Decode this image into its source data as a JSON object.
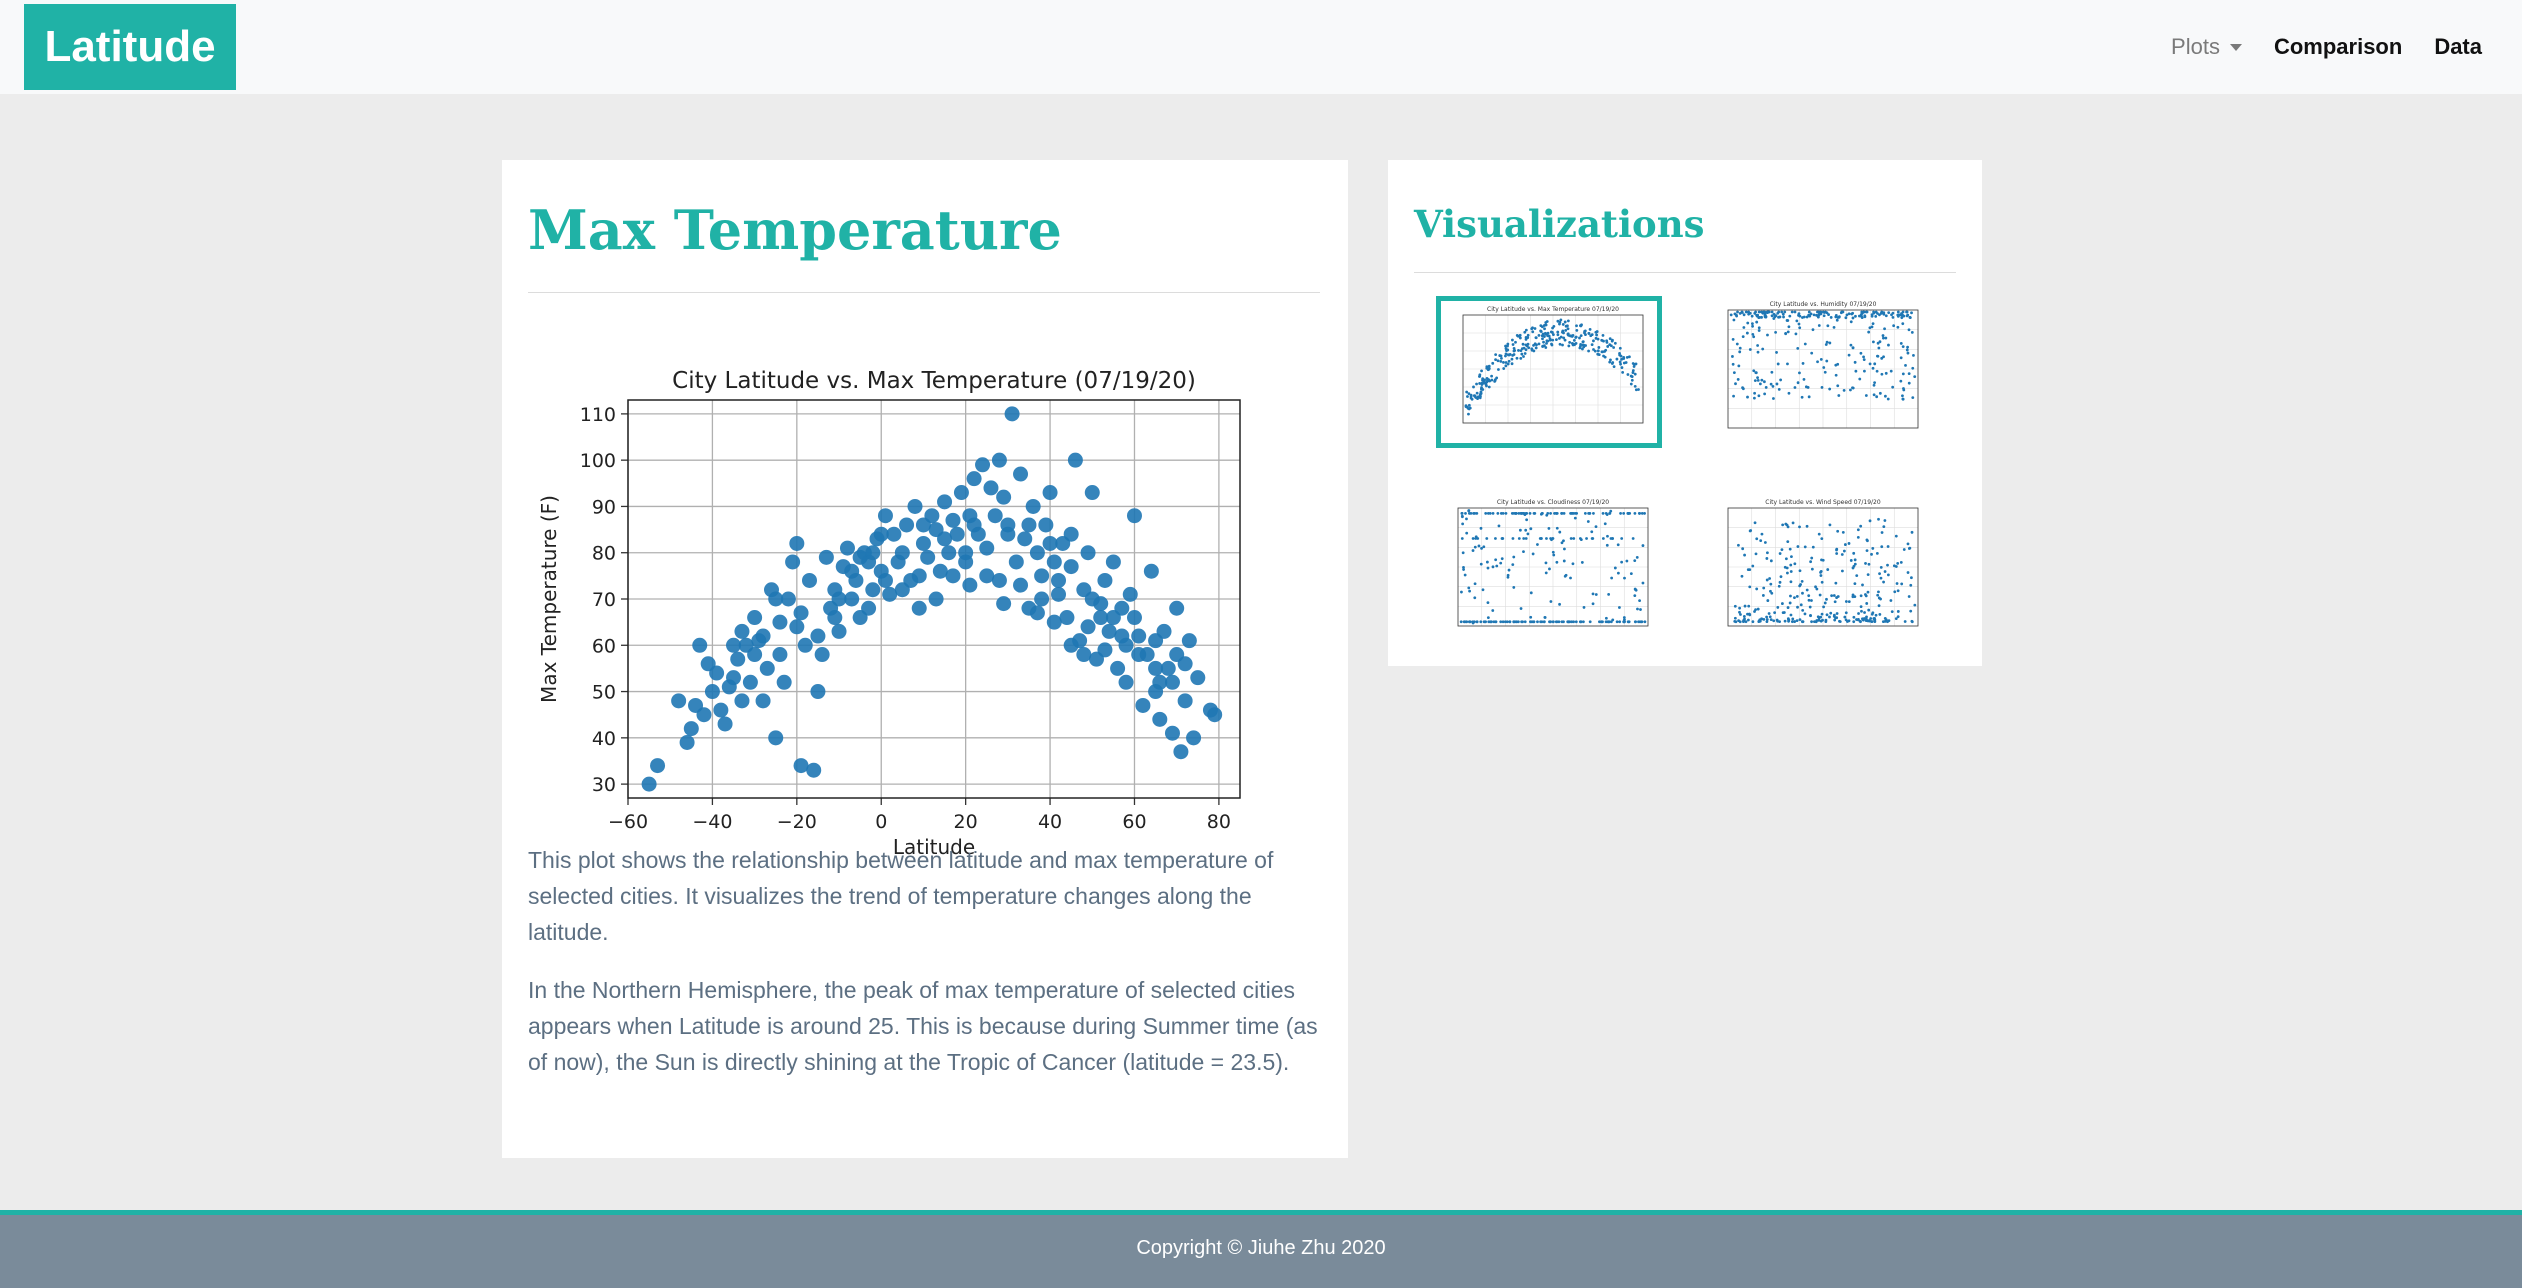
{
  "navbar": {
    "brand": "Latitude",
    "plots_label": "Plots",
    "comparison_label": "Comparison",
    "data_label": "Data"
  },
  "main": {
    "title": "Max Temperature",
    "paragraph1": "This plot shows the relationship between latitude and max temperature of selected cities. It visualizes the trend of temperature changes along the latitude.",
    "paragraph2": "In the Northern Hemisphere, the peak of max temperature of selected cities appears when Latitude is around 25. This is because during Summer time (as of now), the Sun is directly shining at the Tropic of Cancer (latitude = 23.5)."
  },
  "sidebar": {
    "title": "Visualizations",
    "thumbnails": [
      {
        "title": "City Latitude vs. Max Temperature 07/19/20",
        "active": true
      },
      {
        "title": "City Latitude vs. Humidity 07/19/20",
        "active": false
      },
      {
        "title": "City Latitude vs. Cloudiness 07/19/20",
        "active": false
      },
      {
        "title": "City Latitude vs. Wind Speed 07/19/20",
        "active": false
      }
    ]
  },
  "footer": {
    "copyright": "Copyright © Jiuhe Zhu 2020"
  },
  "colors": {
    "accent": "#20b2a6",
    "point": "#1f77b4",
    "footer": "#7a8b9a",
    "body_text": "#5c6f82"
  },
  "chart_data": {
    "type": "scatter",
    "title": "City Latitude vs. Max Temperature (07/19/20)",
    "xlabel": "Latitude",
    "ylabel": "Max Temperature (F)",
    "xlim": [
      -60,
      85
    ],
    "ylim": [
      27,
      113
    ],
    "xticks": [
      -60,
      -40,
      -20,
      0,
      20,
      40,
      60,
      80
    ],
    "yticks": [
      30,
      40,
      50,
      60,
      70,
      80,
      90,
      100,
      110
    ],
    "grid": true,
    "points": [
      [
        -55,
        30
      ],
      [
        -53,
        34
      ],
      [
        -46,
        39
      ],
      [
        -45,
        42
      ],
      [
        -44,
        47
      ],
      [
        -42,
        45
      ],
      [
        -41,
        56
      ],
      [
        -40,
        50
      ],
      [
        -38,
        46
      ],
      [
        -37,
        43
      ],
      [
        -36,
        51
      ],
      [
        -35,
        53
      ],
      [
        -34,
        57
      ],
      [
        -33,
        63
      ],
      [
        -32,
        60
      ],
      [
        -31,
        52
      ],
      [
        -30,
        66
      ],
      [
        -29,
        61
      ],
      [
        -28,
        48
      ],
      [
        -27,
        55
      ],
      [
        -26,
        72
      ],
      [
        -25,
        40
      ],
      [
        -24,
        65
      ],
      [
        -23,
        52
      ],
      [
        -22,
        70
      ],
      [
        -21,
        78
      ],
      [
        -20,
        82
      ],
      [
        -19,
        34
      ],
      [
        -18,
        60
      ],
      [
        -17,
        74
      ],
      [
        -16,
        33
      ],
      [
        -15,
        50
      ],
      [
        -14,
        58
      ],
      [
        -13,
        79
      ],
      [
        -12,
        68
      ],
      [
        -11,
        72
      ],
      [
        -10,
        63
      ],
      [
        -9,
        77
      ],
      [
        -8,
        81
      ],
      [
        -7,
        70
      ],
      [
        -6,
        74
      ],
      [
        -5,
        66
      ],
      [
        -4,
        80
      ],
      [
        -3,
        78
      ],
      [
        -2,
        72
      ],
      [
        -1,
        83
      ],
      [
        0,
        76
      ],
      [
        1,
        88
      ],
      [
        2,
        71
      ],
      [
        3,
        84
      ],
      [
        4,
        78
      ],
      [
        5,
        80
      ],
      [
        6,
        86
      ],
      [
        7,
        74
      ],
      [
        8,
        90
      ],
      [
        9,
        68
      ],
      [
        10,
        82
      ],
      [
        11,
        79
      ],
      [
        12,
        88
      ],
      [
        13,
        85
      ],
      [
        14,
        76
      ],
      [
        15,
        91
      ],
      [
        16,
        80
      ],
      [
        17,
        87
      ],
      [
        18,
        84
      ],
      [
        19,
        93
      ],
      [
        20,
        78
      ],
      [
        21,
        88
      ],
      [
        22,
        96
      ],
      [
        23,
        84
      ],
      [
        24,
        99
      ],
      [
        25,
        81
      ],
      [
        26,
        94
      ],
      [
        27,
        88
      ],
      [
        28,
        100
      ],
      [
        29,
        92
      ],
      [
        30,
        86
      ],
      [
        31,
        110
      ],
      [
        32,
        78
      ],
      [
        33,
        97
      ],
      [
        34,
        83
      ],
      [
        35,
        68
      ],
      [
        36,
        90
      ],
      [
        37,
        80
      ],
      [
        38,
        75
      ],
      [
        39,
        86
      ],
      [
        40,
        93
      ],
      [
        41,
        78
      ],
      [
        42,
        71
      ],
      [
        43,
        82
      ],
      [
        44,
        66
      ],
      [
        45,
        77
      ],
      [
        46,
        100
      ],
      [
        47,
        61
      ],
      [
        48,
        72
      ],
      [
        49,
        80
      ],
      [
        50,
        93
      ],
      [
        51,
        57
      ],
      [
        52,
        69
      ],
      [
        53,
        74
      ],
      [
        54,
        63
      ],
      [
        55,
        78
      ],
      [
        56,
        55
      ],
      [
        57,
        68
      ],
      [
        58,
        52
      ],
      [
        59,
        71
      ],
      [
        60,
        88
      ],
      [
        61,
        62
      ],
      [
        62,
        47
      ],
      [
        63,
        58
      ],
      [
        64,
        76
      ],
      [
        65,
        50
      ],
      [
        66,
        44
      ],
      [
        67,
        63
      ],
      [
        68,
        55
      ],
      [
        69,
        41
      ],
      [
        70,
        58
      ],
      [
        71,
        37
      ],
      [
        72,
        48
      ],
      [
        73,
        61
      ],
      [
        74,
        40
      ],
      [
        75,
        53
      ],
      [
        78,
        46
      ],
      [
        79,
        45
      ],
      [
        -43,
        60
      ],
      [
        -39,
        54
      ],
      [
        -33,
        48
      ],
      [
        -28,
        62
      ],
      [
        -24,
        58
      ],
      [
        -19,
        67
      ],
      [
        -15,
        62
      ],
      [
        -11,
        66
      ],
      [
        -7,
        76
      ],
      [
        -3,
        68
      ],
      [
        1,
        74
      ],
      [
        5,
        72
      ],
      [
        9,
        75
      ],
      [
        13,
        70
      ],
      [
        17,
        75
      ],
      [
        21,
        73
      ],
      [
        25,
        75
      ],
      [
        29,
        69
      ],
      [
        33,
        73
      ],
      [
        37,
        67
      ],
      [
        41,
        65
      ],
      [
        45,
        60
      ],
      [
        49,
        64
      ],
      [
        53,
        59
      ],
      [
        57,
        62
      ],
      [
        61,
        58
      ],
      [
        65,
        55
      ],
      [
        69,
        52
      ],
      [
        -30,
        58
      ],
      [
        -20,
        64
      ],
      [
        -10,
        70
      ],
      [
        0,
        84
      ],
      [
        10,
        86
      ],
      [
        20,
        80
      ],
      [
        30,
        84
      ],
      [
        40,
        82
      ],
      [
        50,
        70
      ],
      [
        60,
        66
      ],
      [
        -35,
        60
      ],
      [
        -25,
        70
      ],
      [
        -5,
        79
      ],
      [
        15,
        83
      ],
      [
        35,
        86
      ],
      [
        55,
        66
      ],
      [
        65,
        61
      ],
      [
        70,
        68
      ],
      [
        45,
        84
      ],
      [
        52,
        66
      ],
      [
        -48,
        48
      ],
      [
        -2,
        80
      ],
      [
        22,
        86
      ],
      [
        38,
        70
      ],
      [
        58,
        60
      ],
      [
        66,
        52
      ],
      [
        72,
        56
      ],
      [
        28,
        74
      ],
      [
        42,
        74
      ],
      [
        48,
        58
      ]
    ]
  }
}
